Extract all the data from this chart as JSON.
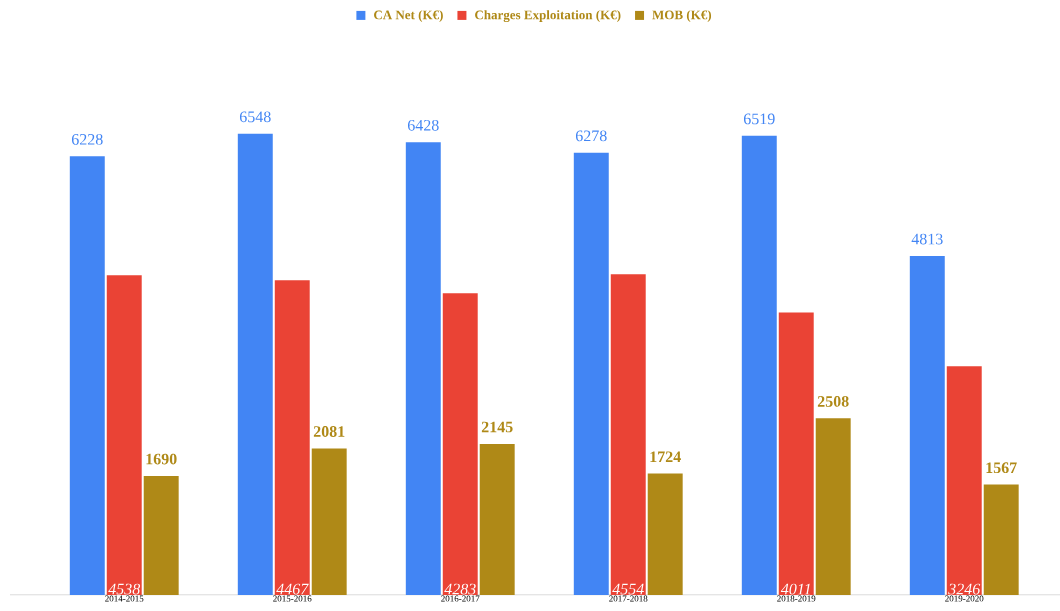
{
  "chart_data": {
    "type": "bar",
    "categories": [
      "2014-2015",
      "2015-2016",
      "2016-2017",
      "2017-2018",
      "2018-2019",
      "2019-2020"
    ],
    "series": [
      {
        "name": "CA Net (K€)",
        "color": "#4285f4",
        "values": [
          6228,
          6548,
          6428,
          6278,
          6519,
          4813
        ]
      },
      {
        "name": "Charges Exploitation (K€)",
        "color": "#ea4335",
        "values": [
          4538,
          4467,
          4283,
          4554,
          4011,
          3246
        ]
      },
      {
        "name": "MOB (K€)",
        "color": "#af8917",
        "values": [
          1690,
          2081,
          2145,
          1724,
          2508,
          1567
        ]
      }
    ],
    "data_labels": true,
    "legend": "top",
    "tick_labels": "x"
  }
}
